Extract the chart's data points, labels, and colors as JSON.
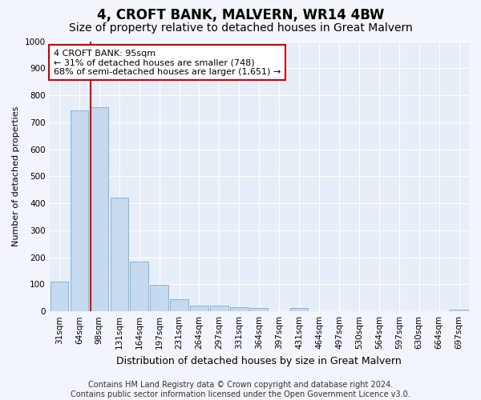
{
  "title": "4, CROFT BANK, MALVERN, WR14 4BW",
  "subtitle": "Size of property relative to detached houses in Great Malvern",
  "xlabel": "Distribution of detached houses by size in Great Malvern",
  "ylabel": "Number of detached properties",
  "bar_color": "#c5d9ef",
  "bar_edge_color": "#7aadd4",
  "background_color": "#e8eef7",
  "grid_color": "#ffffff",
  "fig_bg_color": "#f2f5fb",
  "categories": [
    "31sqm",
    "64sqm",
    "98sqm",
    "131sqm",
    "164sqm",
    "197sqm",
    "231sqm",
    "264sqm",
    "297sqm",
    "331sqm",
    "364sqm",
    "397sqm",
    "431sqm",
    "464sqm",
    "497sqm",
    "530sqm",
    "564sqm",
    "597sqm",
    "630sqm",
    "664sqm",
    "697sqm"
  ],
  "values": [
    110,
    745,
    755,
    420,
    185,
    98,
    45,
    22,
    22,
    15,
    13,
    0,
    13,
    0,
    0,
    0,
    0,
    0,
    0,
    0,
    5
  ],
  "ylim": [
    0,
    1000
  ],
  "yticks": [
    0,
    100,
    200,
    300,
    400,
    500,
    600,
    700,
    800,
    900,
    1000
  ],
  "vline_color": "#cc0000",
  "vline_bin": 2,
  "annotation_text": "4 CROFT BANK: 95sqm\n← 31% of detached houses are smaller (748)\n68% of semi-detached houses are larger (1,651) →",
  "annotation_box_color": "#ffffff",
  "annotation_box_edge": "#cc0000",
  "footer_text": "Contains HM Land Registry data © Crown copyright and database right 2024.\nContains public sector information licensed under the Open Government Licence v3.0.",
  "title_fontsize": 12,
  "subtitle_fontsize": 10,
  "xlabel_fontsize": 9,
  "ylabel_fontsize": 8,
  "tick_fontsize": 7.5,
  "annotation_fontsize": 8,
  "footer_fontsize": 7
}
